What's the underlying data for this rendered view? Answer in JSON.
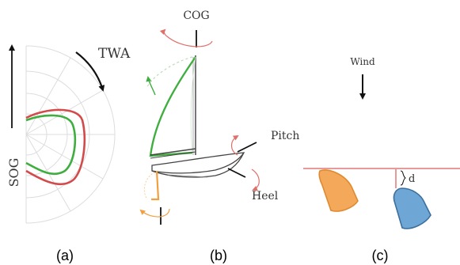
{
  "panels": [
    {
      "caption": "(a)",
      "labels": {
        "rotation": "TWA",
        "speed": "SOG"
      },
      "curve_colors": {
        "outer": "#d24a4a",
        "inner": "#3fae3f"
      }
    },
    {
      "caption": "(b)",
      "labels": {
        "course": "COG",
        "pitch": "Pitch",
        "heel": "Heel"
      },
      "colors": {
        "sail": "#3fae3f",
        "rudder": "#f0a040",
        "arrows": "#e0706a",
        "hull": "#444444"
      }
    },
    {
      "caption": "(c)",
      "labels": {
        "wind": "Wind",
        "distance": "d"
      },
      "colors": {
        "line": "#e89a9a",
        "boat_left": "#f4a85a",
        "boat_right": "#6ea6d6"
      }
    }
  ]
}
